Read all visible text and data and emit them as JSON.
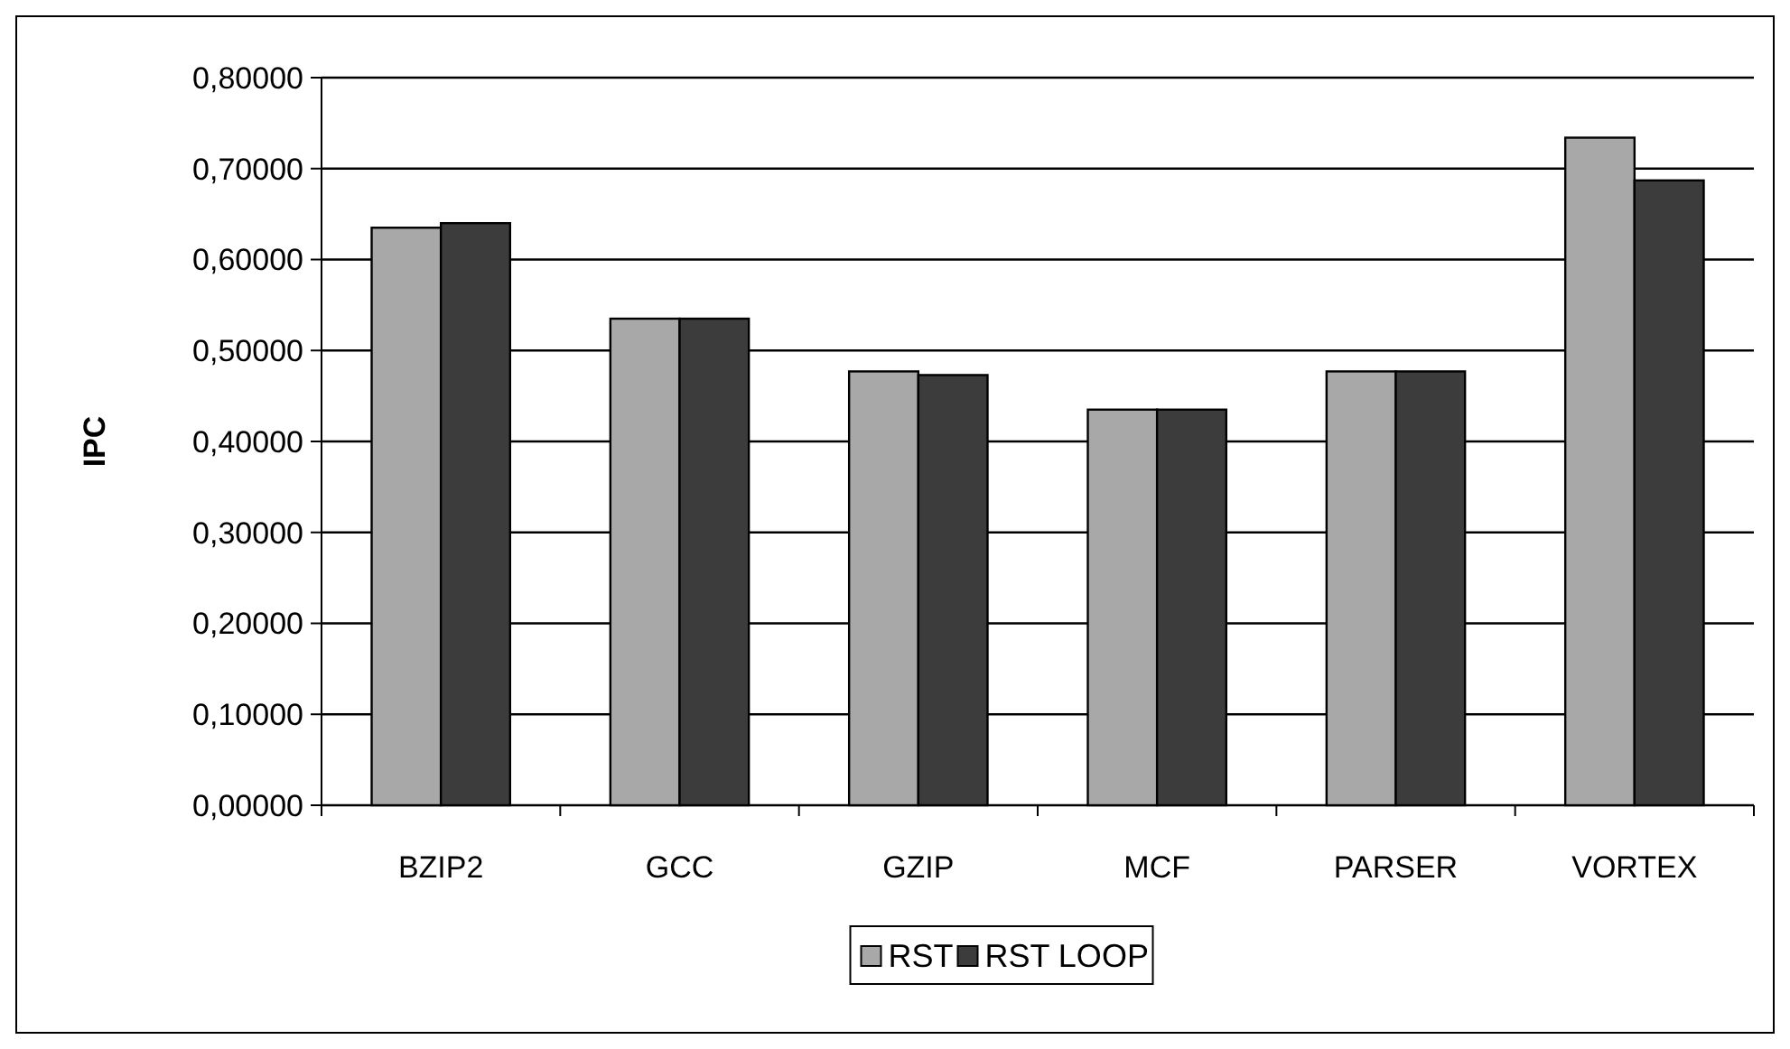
{
  "chart_data": {
    "type": "bar",
    "ylabel": "IPC",
    "categories": [
      "BZIP2",
      "GCC",
      "GZIP",
      "MCF",
      "PARSER",
      "VORTEX"
    ],
    "series": [
      {
        "name": "RST",
        "color": "#a8a8a8",
        "values": [
          0.635,
          0.535,
          0.477,
          0.435,
          0.477,
          0.734
        ]
      },
      {
        "name": "RST LOOP",
        "color": "#3c3c3c",
        "values": [
          0.64,
          0.535,
          0.473,
          0.435,
          0.477,
          0.687
        ]
      }
    ],
    "ylim": [
      0,
      0.8
    ],
    "yticks": [
      {
        "value": 0,
        "label": "0,00000"
      },
      {
        "value": 0.1,
        "label": "0,10000"
      },
      {
        "value": 0.2,
        "label": "0,20000"
      },
      {
        "value": 0.3,
        "label": "0,30000"
      },
      {
        "value": 0.4,
        "label": "0,40000"
      },
      {
        "value": 0.5,
        "label": "0,50000"
      },
      {
        "value": 0.6,
        "label": "0,60000"
      },
      {
        "value": 0.7,
        "label": "0,70000"
      },
      {
        "value": 0.8,
        "label": "0,80000"
      }
    ],
    "grid": "y",
    "legend": "bottom"
  }
}
